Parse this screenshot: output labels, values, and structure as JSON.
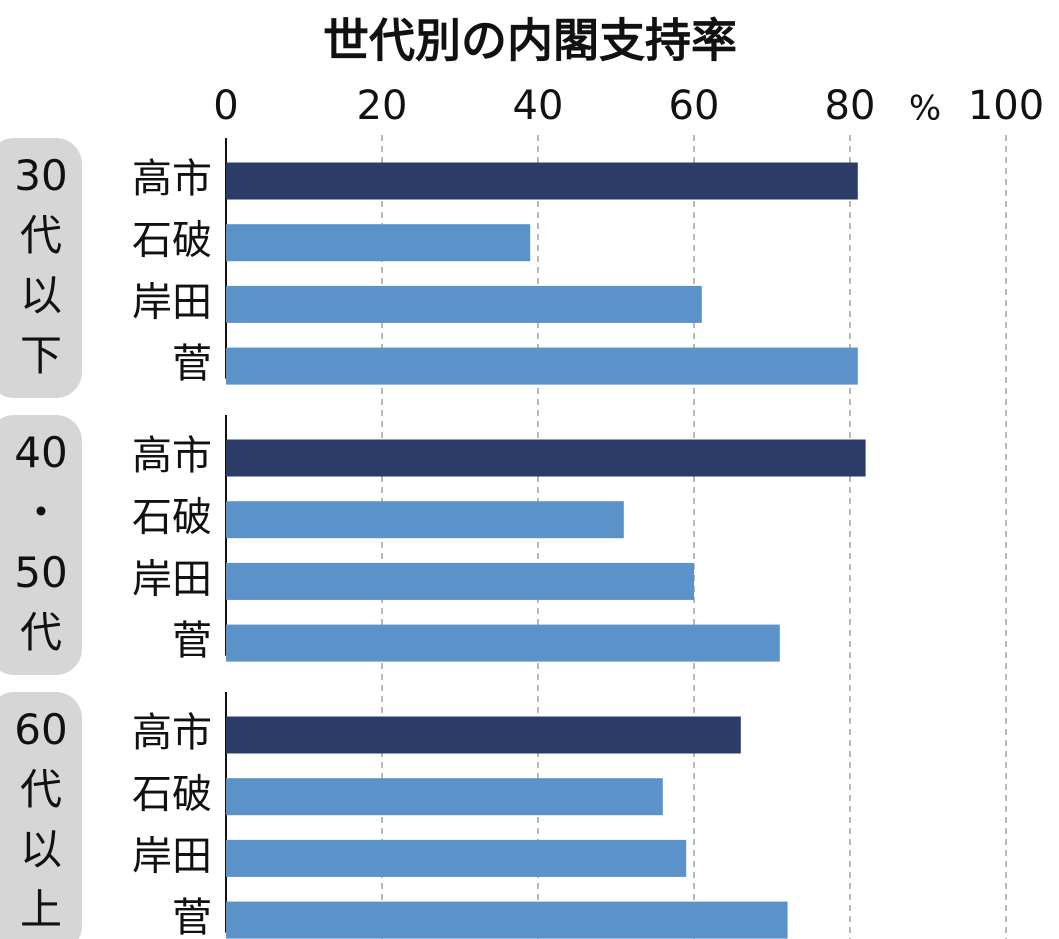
{
  "chart_data": {
    "type": "bar",
    "orientation": "horizontal",
    "title": "世代別の内閣支持率",
    "unit": "%",
    "xlim": [
      0,
      100
    ],
    "xticks": [
      0,
      20,
      40,
      60,
      80,
      100
    ],
    "grid": true,
    "groups": [
      {
        "name": "30代以下",
        "categories": [
          "高市",
          "石破",
          "岸田",
          "菅"
        ],
        "values": [
          81,
          39,
          61,
          81
        ],
        "colors": [
          "#2c3c68",
          "#5b92c9",
          "#5b92c9",
          "#5b92c9"
        ]
      },
      {
        "name": "40・50代",
        "categories": [
          "高市",
          "石破",
          "岸田",
          "菅"
        ],
        "values": [
          82,
          51,
          60,
          71
        ],
        "colors": [
          "#2c3c68",
          "#5b92c9",
          "#5b92c9",
          "#5b92c9"
        ]
      },
      {
        "name": "60代以上",
        "categories": [
          "高市",
          "石破",
          "岸田",
          "菅"
        ],
        "values": [
          66,
          56,
          59,
          72
        ],
        "colors": [
          "#2c3c68",
          "#5b92c9",
          "#5b92c9",
          "#5b92c9"
        ]
      }
    ]
  }
}
